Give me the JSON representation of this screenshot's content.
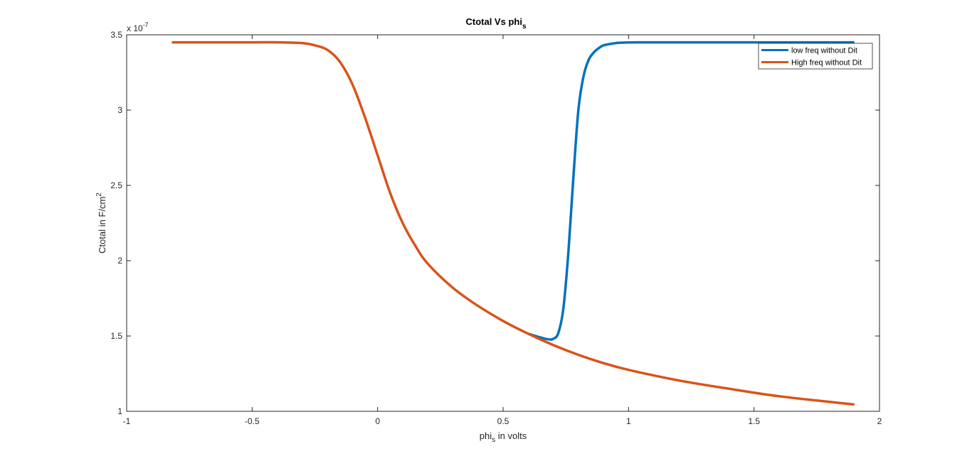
{
  "chart_data": {
    "type": "line",
    "title": "Ctotal Vs phi",
    "title_subscript": "s",
    "xlabel": "phi",
    "xlabel_subscript": "s",
    "xlabel_suffix": " in volts",
    "ylabel": "Ctotal in F/cm",
    "ylabel_superscript": "2",
    "y_exponent_base": "x 10",
    "y_exponent": "-7",
    "xlim": [
      -1,
      2
    ],
    "ylim": [
      1,
      3.5
    ],
    "x_ticks": [
      -1,
      -0.5,
      0,
      0.5,
      1,
      1.5,
      2
    ],
    "x_tick_labels": [
      "-1",
      "-0.5",
      "0",
      "0.5",
      "1",
      "1.5",
      "2"
    ],
    "y_ticks": [
      1,
      1.5,
      2,
      2.5,
      3,
      3.5
    ],
    "y_tick_labels": [
      "1",
      "1.5",
      "2",
      "2.5",
      "3",
      "3.5"
    ],
    "grid": false,
    "legend_position": "top-right",
    "series": [
      {
        "name": "low freq without Dit",
        "color": "#0072BD",
        "x": [
          0.6,
          0.65,
          0.68,
          0.7,
          0.72,
          0.74,
          0.76,
          0.78,
          0.8,
          0.82,
          0.84,
          0.86,
          0.88,
          0.9,
          0.93,
          0.96,
          1.0,
          1.05,
          1.1,
          1.2,
          1.3,
          1.5,
          1.9
        ],
        "y": [
          1.515,
          1.49,
          1.478,
          1.481,
          1.52,
          1.68,
          2.05,
          2.55,
          3.0,
          3.22,
          3.33,
          3.38,
          3.41,
          3.43,
          3.44,
          3.447,
          3.449,
          3.45,
          3.45,
          3.45,
          3.45,
          3.45,
          3.45
        ]
      },
      {
        "name": "High freq without Dit",
        "color": "#D95319",
        "x": [
          -0.82,
          -0.5,
          -0.4,
          -0.3,
          -0.25,
          -0.2,
          -0.15,
          -0.1,
          -0.05,
          0.0,
          0.05,
          0.1,
          0.15,
          0.2,
          0.3,
          0.4,
          0.5,
          0.6,
          0.7,
          0.8,
          0.9,
          1.0,
          1.2,
          1.4,
          1.6,
          1.9
        ],
        "y": [
          3.45,
          3.45,
          3.45,
          3.445,
          3.43,
          3.4,
          3.32,
          3.17,
          2.95,
          2.7,
          2.45,
          2.25,
          2.1,
          1.98,
          1.82,
          1.7,
          1.6,
          1.515,
          1.44,
          1.375,
          1.32,
          1.275,
          1.205,
          1.15,
          1.1,
          1.045
        ]
      }
    ]
  }
}
